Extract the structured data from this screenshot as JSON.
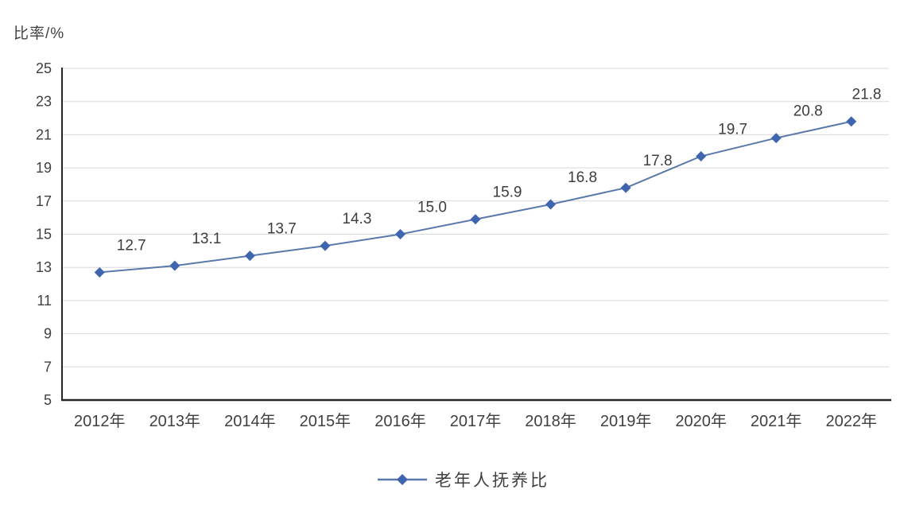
{
  "chart_data": {
    "type": "line",
    "title": "比率/%",
    "xlabel": "",
    "ylabel": "比率/%",
    "categories": [
      "2012年",
      "2013年",
      "2014年",
      "2015年",
      "2016年",
      "2017年",
      "2018年",
      "2019年",
      "2020年",
      "2021年",
      "2022年"
    ],
    "series": [
      {
        "name": "老年人抚养比",
        "values": [
          12.7,
          13.1,
          13.7,
          14.3,
          15.0,
          15.9,
          16.8,
          17.8,
          19.7,
          20.8,
          21.8
        ]
      }
    ],
    "ylim": [
      5,
      25
    ],
    "ytick_step": 2,
    "grid": "horizontal",
    "legend_position": "bottom-center",
    "data_labels": true,
    "marker": "diamond",
    "colors": {
      "line": "#5a79ab",
      "marker": "#3e65ae",
      "axis": "#262626",
      "gridline": "#d9d9d9",
      "tick_text": "#404040",
      "label_text": "#3d3d3d"
    }
  }
}
